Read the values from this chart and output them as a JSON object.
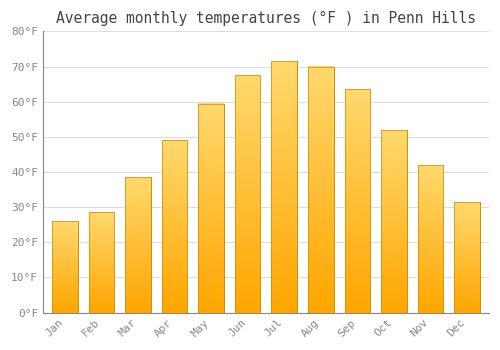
{
  "title": "Average monthly temperatures (°F ) in Penn Hills",
  "months": [
    "Jan",
    "Feb",
    "Mar",
    "Apr",
    "May",
    "Jun",
    "Jul",
    "Aug",
    "Sep",
    "Oct",
    "Nov",
    "Dec"
  ],
  "values": [
    26,
    28.5,
    38.5,
    49,
    59.5,
    67.5,
    71.5,
    70,
    63.5,
    52,
    42,
    31.5
  ],
  "bar_color": "#FFA500",
  "bar_color_light": "#FFD060",
  "bar_edge_color": "#CC8800",
  "background_color": "#FFFFFF",
  "grid_color": "#DDDDDD",
  "text_color": "#888888",
  "title_color": "#444444",
  "ylim": [
    0,
    80
  ],
  "yticks": [
    0,
    10,
    20,
    30,
    40,
    50,
    60,
    70,
    80
  ],
  "ytick_labels": [
    "0°F",
    "10°F",
    "20°F",
    "30°F",
    "40°F",
    "50°F",
    "60°F",
    "70°F",
    "80°F"
  ],
  "font_family": "monospace",
  "title_fontsize": 10.5,
  "tick_fontsize": 8
}
